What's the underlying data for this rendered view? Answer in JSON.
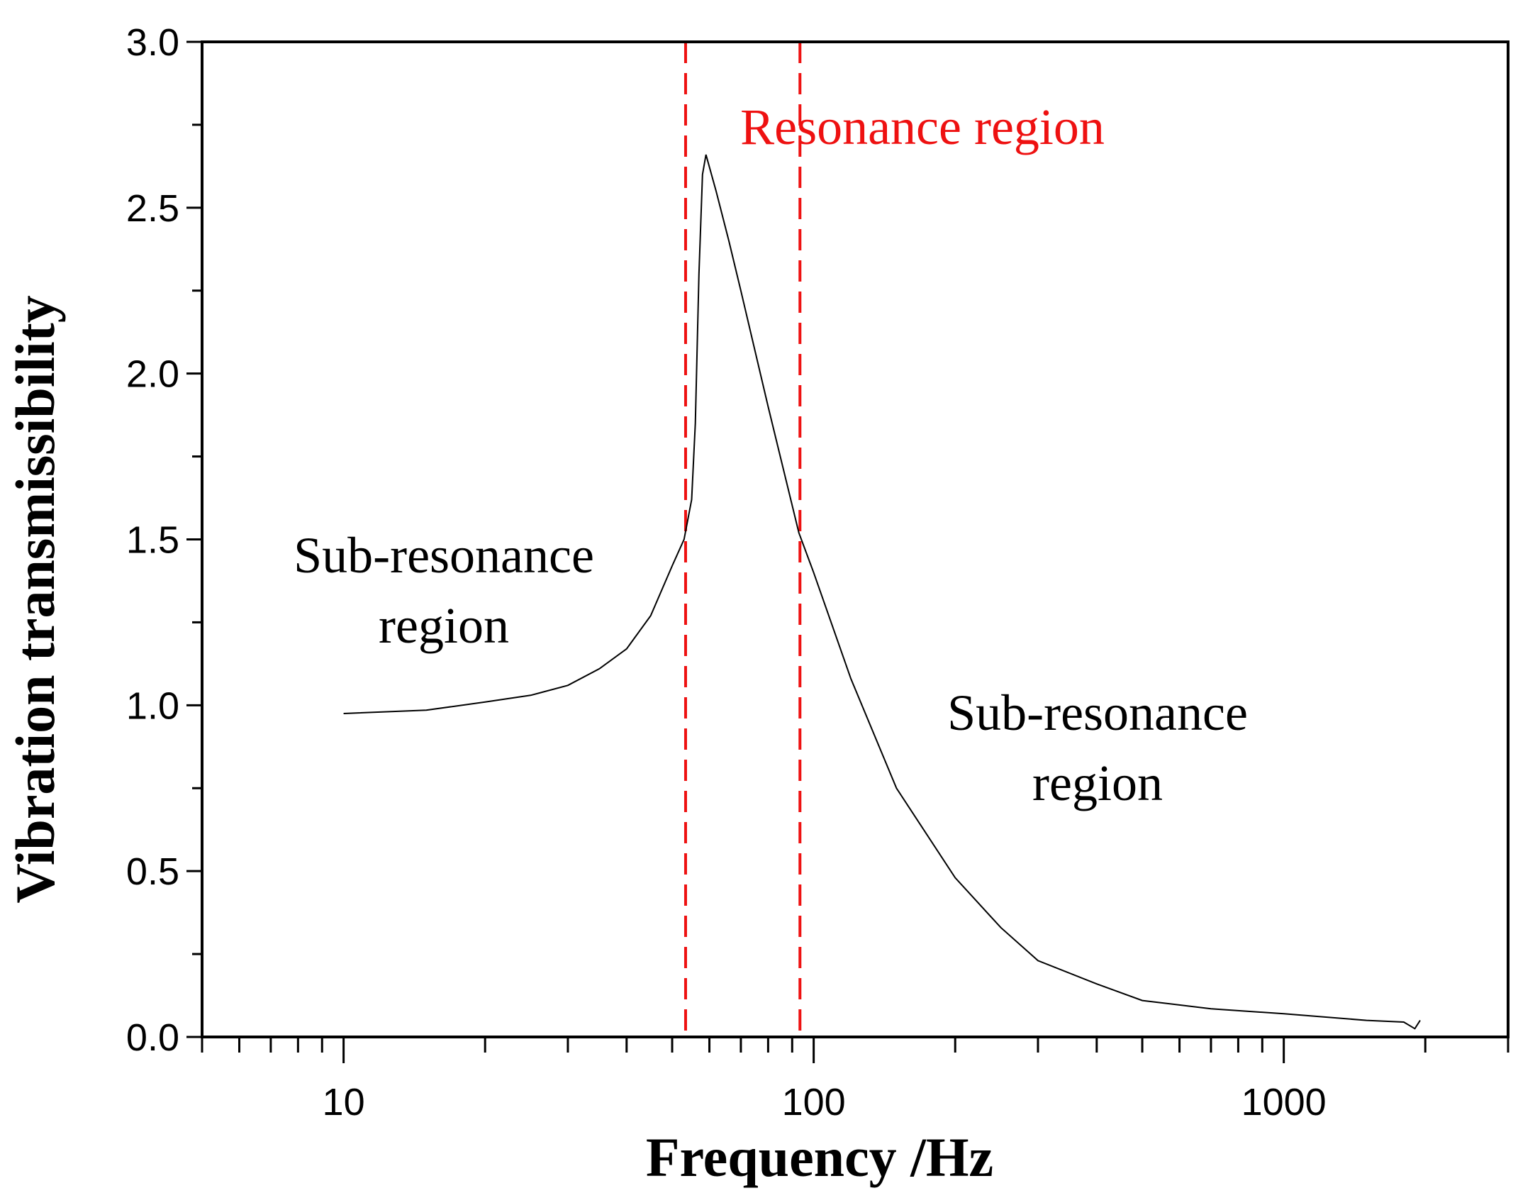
{
  "chart_data": {
    "type": "line",
    "title": "",
    "xlabel": "Frequency /Hz",
    "ylabel": "Vibration transmissibility",
    "xscale": "log",
    "xlim": [
      5,
      3000
    ],
    "ylim": [
      0,
      3.0
    ],
    "xticks": [
      10,
      100,
      1000
    ],
    "xtick_labels": [
      "10",
      "100",
      "1000"
    ],
    "yticks": [
      0,
      0.5,
      1.0,
      1.5,
      2.0,
      2.5,
      3.0
    ],
    "ytick_labels": [
      "0.0",
      "0.5",
      "1.0",
      "1.5",
      "2.0",
      "2.5",
      "3.0"
    ],
    "grid": false,
    "series": [
      {
        "name": "Transmissibility",
        "color": "#000000",
        "x": [
          10,
          15,
          20,
          25,
          30,
          35,
          40,
          45,
          50,
          53,
          55,
          56,
          57,
          58,
          59,
          62,
          66,
          70,
          80,
          93,
          100,
          120,
          150,
          200,
          250,
          300,
          400,
          500,
          700,
          1000,
          1500,
          1800,
          1900,
          1950
        ],
        "y": [
          0.975,
          0.985,
          1.01,
          1.03,
          1.06,
          1.11,
          1.17,
          1.27,
          1.42,
          1.5,
          1.62,
          1.85,
          2.3,
          2.6,
          2.66,
          2.55,
          2.4,
          2.25,
          1.9,
          1.52,
          1.4,
          1.08,
          0.75,
          0.48,
          0.33,
          0.23,
          0.16,
          0.11,
          0.085,
          0.07,
          0.05,
          0.045,
          0.025,
          0.05
        ]
      }
    ],
    "reference_lines": [
      {
        "x": 53.4,
        "color": "#ee1111",
        "style": "dashed"
      },
      {
        "x": 93.5,
        "color": "#ee1111",
        "style": "dashed"
      }
    ],
    "annotations": [
      {
        "text": "Resonance region",
        "color": "#ee1111",
        "x": 130,
        "y": 2.75
      },
      {
        "lines": [
          "Sub-resonance",
          "region"
        ],
        "color": "#000000",
        "x": 20,
        "y": 1.4
      },
      {
        "lines": [
          "Sub-resonance",
          "region"
        ],
        "color": "#000000",
        "x": 500,
        "y": 0.95
      }
    ]
  }
}
